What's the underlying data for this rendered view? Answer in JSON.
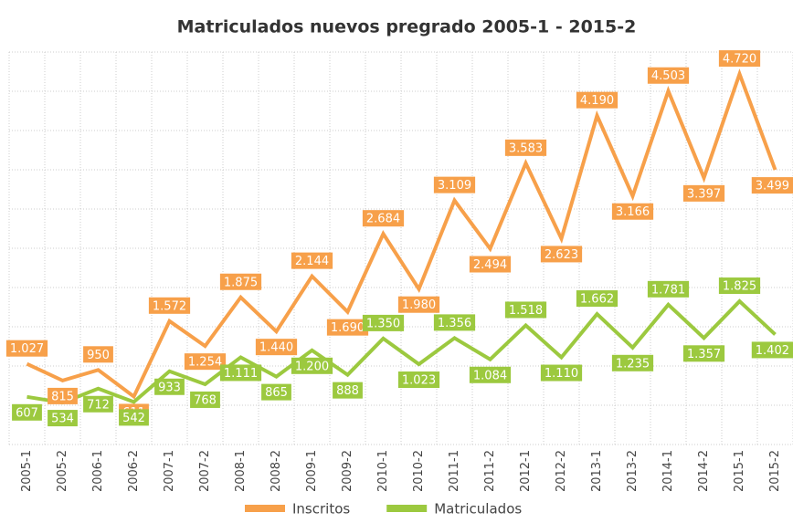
{
  "chart_data": {
    "type": "line",
    "title": "Matriculados nuevos pregrado 2005-1 - 2015-2",
    "categories": [
      "2005-1",
      "2005-2",
      "2006-1",
      "2006-2",
      "2007-1",
      "2007-2",
      "2008-1",
      "2008-2",
      "2009-1",
      "2009-2",
      "2010-1",
      "2010-2",
      "2011-1",
      "2011-2",
      "2012-1",
      "2012-2",
      "2013-1",
      "2013-2",
      "2014-1",
      "2014-2",
      "2015-1",
      "2015-2"
    ],
    "series": [
      {
        "name": "Inscritos",
        "color": "#f7a04a",
        "values": [
          1027,
          815,
          950,
          611,
          1572,
          1254,
          1875,
          1440,
          2144,
          1690,
          2684,
          1980,
          3109,
          2494,
          3583,
          2623,
          4190,
          3166,
          4503,
          3397,
          4720,
          3499
        ],
        "value_labels": [
          "1.027",
          "815",
          "950",
          "611",
          "1.572",
          "1.254",
          "1.875",
          "1.440",
          "2.144",
          "1.690",
          "2.684",
          "1.980",
          "3.109",
          "2.494",
          "3.583",
          "2.623",
          "4.190",
          "3.166",
          "4.503",
          "3.397",
          "4.720",
          "3.499"
        ]
      },
      {
        "name": "Matriculados",
        "color": "#9cc93f",
        "values": [
          607,
          534,
          712,
          542,
          933,
          768,
          1111,
          865,
          1200,
          888,
          1350,
          1023,
          1356,
          1084,
          1518,
          1110,
          1662,
          1235,
          1781,
          1357,
          1825,
          1402
        ],
        "value_labels": [
          "607",
          "534",
          "712",
          "542",
          "933",
          "768",
          "1.111",
          "865",
          "1.200",
          "888",
          "1.350",
          "1.023",
          "1.356",
          "1.084",
          "1.518",
          "1.110",
          "1.662",
          "1.235",
          "1.781",
          "1.357",
          "1.825",
          "1.402"
        ]
      }
    ],
    "ylim": [
      0,
      5000
    ],
    "yticks": [
      0,
      500,
      1000,
      1500,
      2000,
      2500,
      3000,
      3500,
      4000,
      4500,
      5000
    ],
    "grid": true,
    "legend": "bottom"
  }
}
